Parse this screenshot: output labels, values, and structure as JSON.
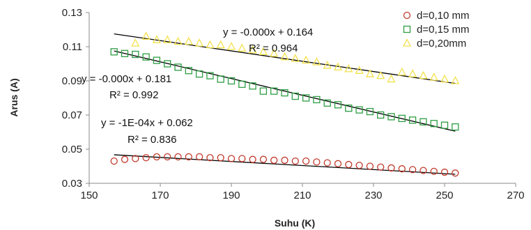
{
  "chart_data": {
    "type": "scatter",
    "title": "",
    "xlabel": "Suhu (K)",
    "ylabel": "Arus (A)",
    "xlim": [
      150,
      270
    ],
    "ylim": [
      0.03,
      0.13
    ],
    "xticks": [
      150,
      170,
      190,
      210,
      230,
      250,
      270
    ],
    "yticks": [
      0.03,
      0.05,
      0.07,
      0.09,
      0.11,
      0.13
    ],
    "xtick_labels": [
      "150",
      "170",
      "190",
      "210",
      "230",
      "250",
      "270"
    ],
    "ytick_labels": [
      "0.03",
      "0.05",
      "0.07",
      "0.09",
      "0.11",
      "0.13"
    ],
    "grid": false,
    "legend_position": "top-right",
    "series": [
      {
        "name": "d=0,10 mm",
        "marker": "circle",
        "color": "#c0392b",
        "x": [
          157,
          160,
          163,
          166,
          169,
          172,
          175,
          178,
          181,
          184,
          187,
          190,
          193,
          196,
          199,
          202,
          205,
          208,
          211,
          214,
          217,
          220,
          223,
          226,
          229,
          232,
          235,
          238,
          241,
          244,
          247,
          250,
          253
        ],
        "y": [
          0.043,
          0.044,
          0.0445,
          0.045,
          0.0455,
          0.0455,
          0.0455,
          0.0455,
          0.0455,
          0.045,
          0.045,
          0.0445,
          0.0445,
          0.044,
          0.044,
          0.0435,
          0.0435,
          0.043,
          0.043,
          0.0425,
          0.042,
          0.0415,
          0.041,
          0.0405,
          0.04,
          0.0395,
          0.039,
          0.0385,
          0.038,
          0.0375,
          0.037,
          0.0365,
          0.036
        ],
        "trendline": {
          "x": [
            157,
            253
          ],
          "y": [
            0.0467,
            0.0353
          ]
        },
        "equation": "y = -1E-04x + 0.062",
        "r2": "R² = 0.836"
      },
      {
        "name": "d=0,15 mm",
        "marker": "square",
        "color": "#2e9e44",
        "x": [
          157,
          160,
          163,
          166,
          169,
          172,
          175,
          178,
          181,
          184,
          187,
          190,
          193,
          196,
          199,
          202,
          205,
          208,
          211,
          214,
          217,
          220,
          223,
          226,
          229,
          232,
          235,
          238,
          241,
          244,
          247,
          250,
          253
        ],
        "y": [
          0.107,
          0.106,
          0.1055,
          0.104,
          0.102,
          0.1,
          0.098,
          0.096,
          0.094,
          0.093,
          0.091,
          0.09,
          0.088,
          0.087,
          0.084,
          0.084,
          0.083,
          0.081,
          0.08,
          0.079,
          0.077,
          0.076,
          0.074,
          0.073,
          0.072,
          0.07,
          0.069,
          0.068,
          0.067,
          0.066,
          0.065,
          0.064,
          0.063
        ],
        "trendline": {
          "x": [
            157,
            253
          ],
          "y": [
            0.1075,
            0.0605
          ]
        },
        "equation": "y = -0.000x + 0.181",
        "r2": "R² = 0.992"
      },
      {
        "name": "d=0,20mm",
        "marker": "triangle",
        "color": "#f2e14c",
        "x": [
          163,
          166,
          169,
          172,
          175,
          178,
          181,
          184,
          187,
          190,
          193,
          196,
          199,
          202,
          205,
          208,
          211,
          214,
          217,
          220,
          223,
          226,
          229,
          232,
          235,
          238,
          241,
          244,
          247,
          250,
          253
        ],
        "y": [
          0.112,
          0.116,
          0.114,
          0.114,
          0.113,
          0.113,
          0.112,
          0.111,
          0.111,
          0.11,
          0.109,
          0.108,
          0.107,
          0.106,
          0.104,
          0.103,
          0.102,
          0.101,
          0.099,
          0.098,
          0.097,
          0.096,
          0.094,
          0.093,
          0.091,
          0.095,
          0.094,
          0.093,
          0.092,
          0.091,
          0.09
        ],
        "trendline": {
          "x": [
            157,
            253
          ],
          "y": [
            0.1175,
            0.0885
          ]
        },
        "equation": "y = -0.000x + 0.164",
        "r2": "R² = 0.964"
      }
    ]
  }
}
